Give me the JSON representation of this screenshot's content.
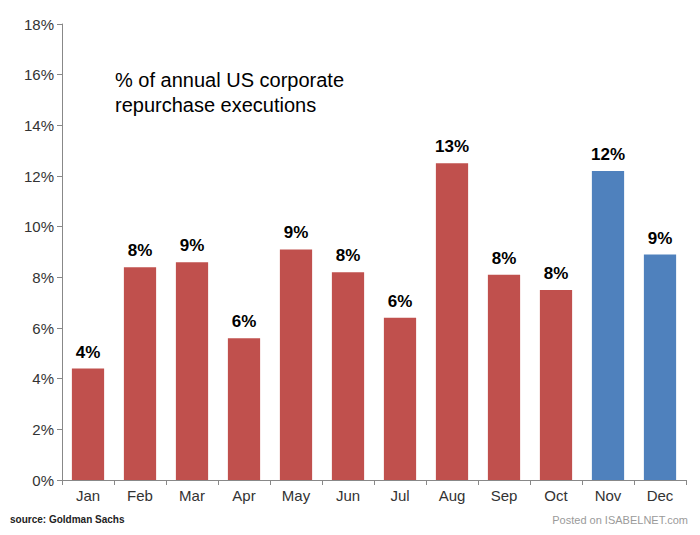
{
  "chart_data": {
    "type": "bar",
    "title": "% of annual US corporate\nrepurchase executions",
    "categories": [
      "Jan",
      "Feb",
      "Mar",
      "Apr",
      "May",
      "Jun",
      "Jul",
      "Aug",
      "Sep",
      "Oct",
      "Nov",
      "Dec"
    ],
    "values": [
      4.4,
      8.4,
      8.6,
      5.6,
      9.1,
      8.2,
      6.4,
      12.5,
      8.1,
      7.5,
      12.2,
      8.9
    ],
    "value_labels": [
      "4%",
      "8%",
      "9%",
      "6%",
      "9%",
      "8%",
      "6%",
      "13%",
      "8%",
      "8%",
      "12%",
      "9%"
    ],
    "colors": [
      "#c0504d",
      "#c0504d",
      "#c0504d",
      "#c0504d",
      "#c0504d",
      "#c0504d",
      "#c0504d",
      "#c0504d",
      "#c0504d",
      "#c0504d",
      "#4f81bd",
      "#4f81bd"
    ],
    "ylim": [
      0,
      18
    ],
    "yticks": [
      {
        "value": 0,
        "label": "0%"
      },
      {
        "value": 2,
        "label": "2%"
      },
      {
        "value": 4,
        "label": "4%"
      },
      {
        "value": 6,
        "label": "6%"
      },
      {
        "value": 8,
        "label": "8%"
      },
      {
        "value": 10,
        "label": "10%"
      },
      {
        "value": 12,
        "label": "12%"
      },
      {
        "value": 14,
        "label": "14%"
      },
      {
        "value": 16,
        "label": "16%"
      },
      {
        "value": 18,
        "label": "18%"
      }
    ],
    "grid": false,
    "data_labels": true,
    "source": "source: Goldman Sachs",
    "watermark": "Posted on ISABELNET.com"
  }
}
